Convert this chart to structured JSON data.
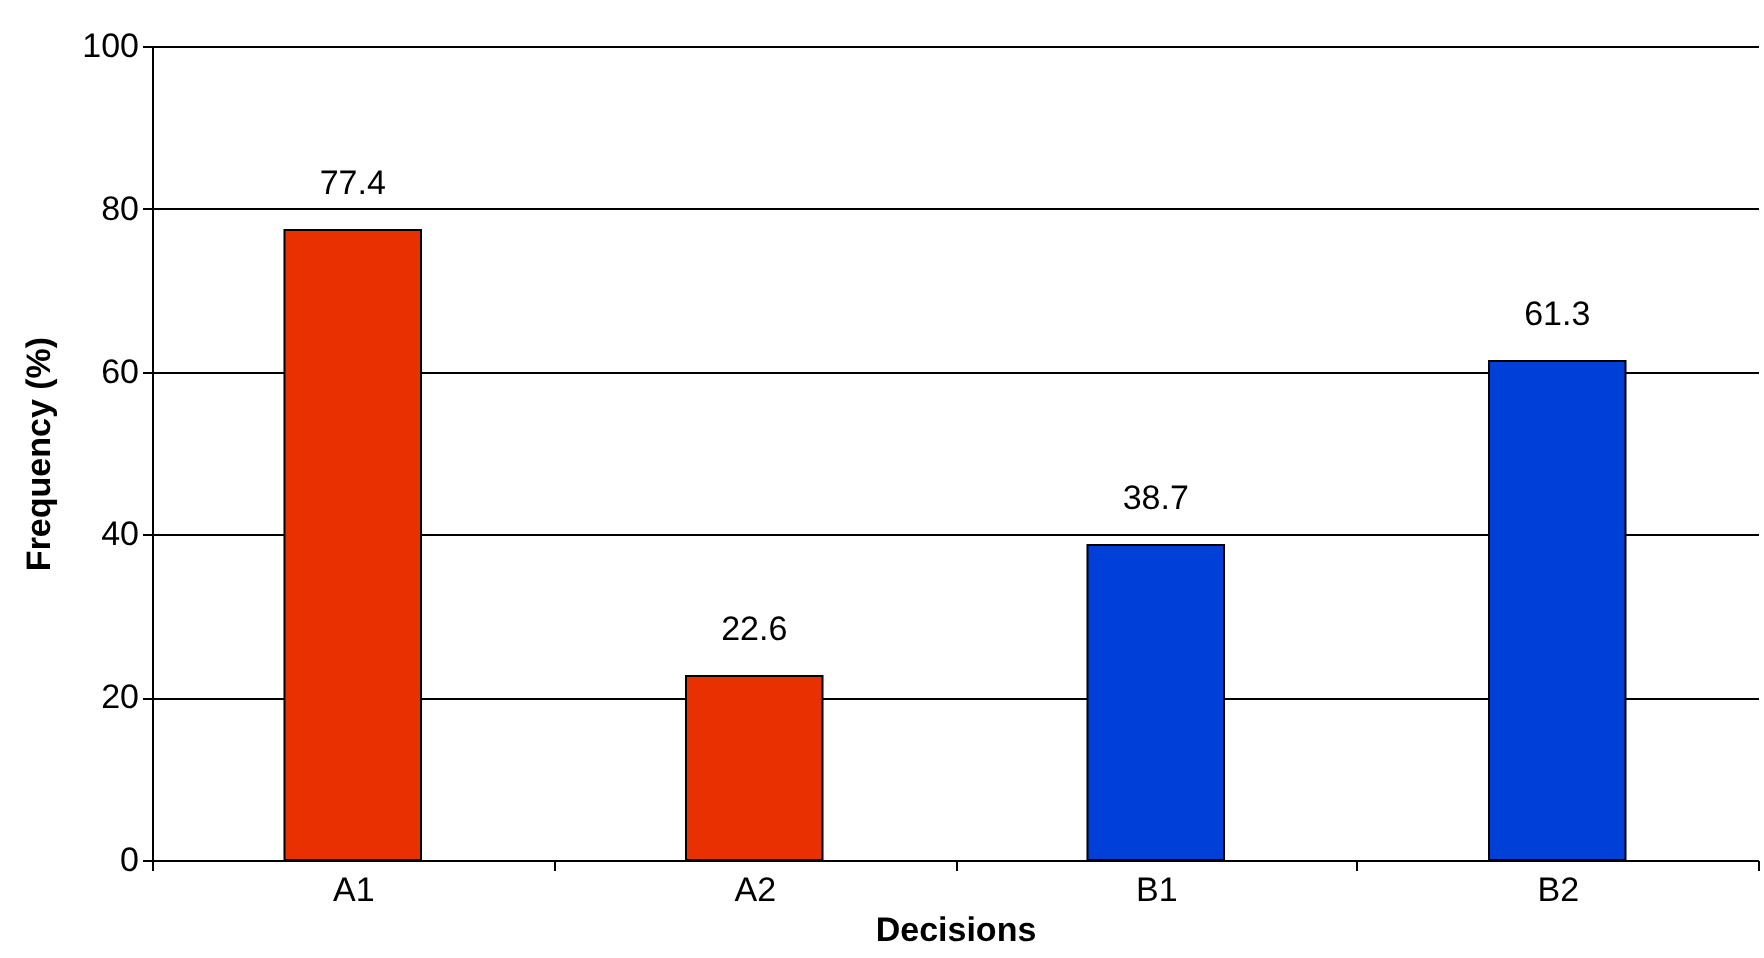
{
  "chart_data": {
    "type": "bar",
    "xlabel": "Decisions",
    "ylabel": "Frequency (%)",
    "categories": [
      "A1",
      "A2",
      "B1",
      "B2"
    ],
    "values": [
      77.4,
      22.6,
      38.7,
      61.3
    ],
    "colors": [
      "#e83000",
      "#e83000",
      "#0040d8",
      "#0040d8"
    ],
    "ylim": [
      0,
      100
    ],
    "yticks": [
      0,
      20,
      40,
      60,
      80,
      100
    ],
    "grid": "y",
    "data_labels": true
  }
}
